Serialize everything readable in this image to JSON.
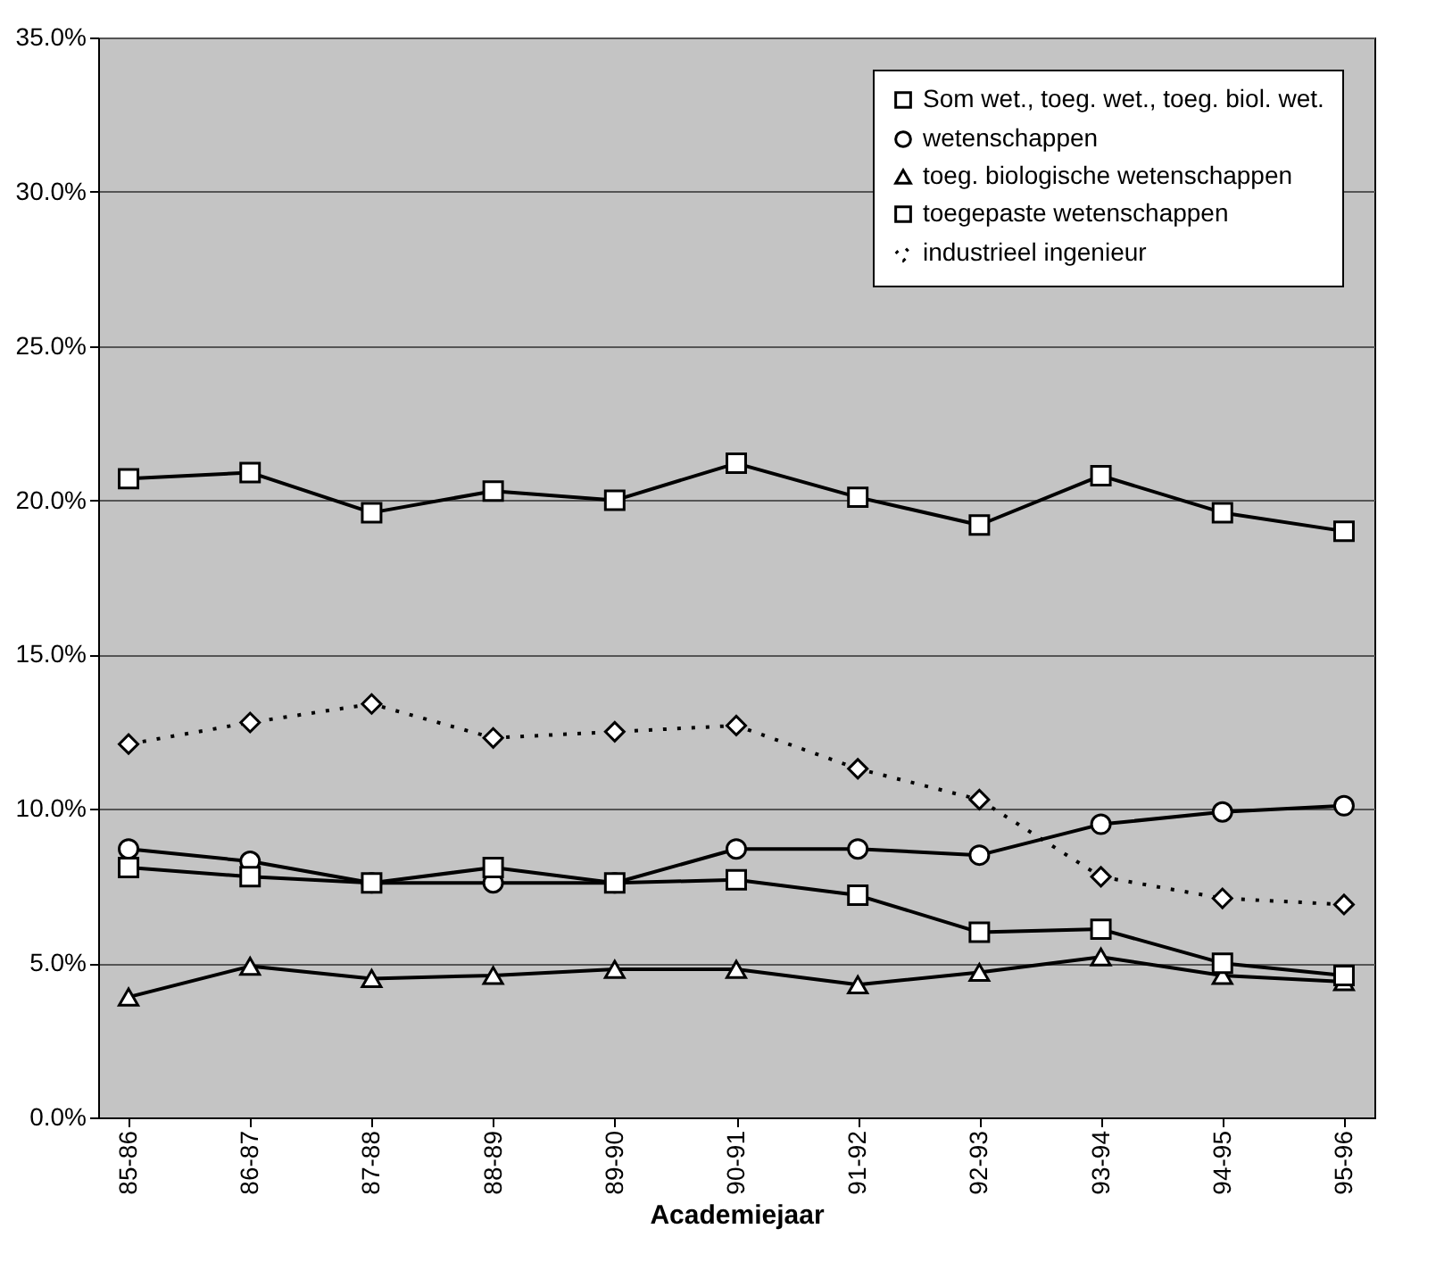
{
  "chart_data": {
    "type": "line",
    "xlabel": "Academiejaar",
    "categories": [
      "85-86",
      "86-87",
      "87-88",
      "88-89",
      "89-90",
      "90-91",
      "91-92",
      "92-93",
      "93-94",
      "94-95",
      "95-96"
    ],
    "ylim": [
      0,
      35
    ],
    "yticks": [
      {
        "value": 0,
        "label": "0.0%"
      },
      {
        "value": 5,
        "label": "5.0%"
      },
      {
        "value": 10,
        "label": "10.0%"
      },
      {
        "value": 15,
        "label": "15.0%"
      },
      {
        "value": 20,
        "label": "20.0%"
      },
      {
        "value": 25,
        "label": "25.0%"
      },
      {
        "value": 30,
        "label": "30.0%"
      },
      {
        "value": 35,
        "label": "35.0%"
      }
    ],
    "grid": "y",
    "legend": "top right",
    "series": [
      {
        "name": "Som wet., toeg. wet., toeg. biol. wet.",
        "color": "#000000",
        "marker": "square",
        "line_style": "solid",
        "values": [
          20.7,
          20.9,
          19.6,
          20.3,
          20.0,
          21.2,
          20.1,
          19.2,
          20.8,
          19.6,
          19.0
        ]
      },
      {
        "name": "wetenschappen",
        "color": "#000000",
        "marker": "circle",
        "line_style": "solid",
        "values": [
          8.7,
          8.3,
          7.6,
          7.6,
          7.6,
          8.7,
          8.7,
          8.5,
          9.5,
          9.9,
          10.1
        ]
      },
      {
        "name": "toeg. biologische wetenschappen",
        "color": "#000000",
        "marker": "triangle",
        "line_style": "solid",
        "values": [
          3.9,
          4.9,
          4.5,
          4.6,
          4.8,
          4.8,
          4.3,
          4.7,
          5.2,
          4.6,
          4.4
        ]
      },
      {
        "name": "toegepaste wetenschappen",
        "color": "#000000",
        "marker": "square",
        "line_style": "solid",
        "values": [
          8.1,
          7.8,
          7.6,
          8.1,
          7.6,
          7.7,
          7.2,
          6.0,
          6.1,
          5.0,
          4.6
        ]
      },
      {
        "name": "industrieel ingenieur",
        "color": "#000000",
        "marker": "diamond",
        "line_style": "dotted",
        "values": [
          12.1,
          12.8,
          13.4,
          12.3,
          12.5,
          12.7,
          11.3,
          10.3,
          7.8,
          7.1,
          6.9
        ]
      }
    ]
  }
}
